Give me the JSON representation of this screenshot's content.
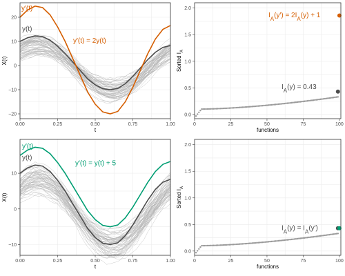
{
  "colors": {
    "orange": "#D55E00",
    "green": "#009E73",
    "bold": "#4d4d4d",
    "thin": "#b3b3b3",
    "points": "#9a9a9a"
  },
  "chart_data": [
    {
      "type": "line",
      "panel": "top-left",
      "xlabel": "t",
      "ylabel": "X(t)",
      "xlim": [
        0,
        1
      ],
      "ylim": [
        -22,
        26
      ],
      "xticks": [
        0,
        0.25,
        0.5,
        0.75,
        1
      ],
      "xticklabels": [
        "0.00",
        "0.25",
        "0.50",
        "0.75",
        "1.00"
      ],
      "yticks": [
        -20,
        -10,
        0,
        10,
        20
      ],
      "yticklabels": [
        "−20",
        "−10",
        "0",
        "10",
        "20"
      ],
      "background_curves": {
        "count": 60,
        "amplitude": 11,
        "offset": -1,
        "phase": 0.0,
        "color": "thin"
      },
      "series": [
        {
          "name": "y(t)",
          "color": "bold",
          "x": [
            0,
            0.05,
            0.1,
            0.15,
            0.2,
            0.25,
            0.3,
            0.35,
            0.4,
            0.45,
            0.5,
            0.55,
            0.6,
            0.65,
            0.7,
            0.75,
            0.8,
            0.85,
            0.9,
            0.95,
            1
          ],
          "values": [
            10,
            11.5,
            12.3,
            12,
            10.5,
            8,
            5,
            1.5,
            -2,
            -5.5,
            -8,
            -9.6,
            -10,
            -9.5,
            -7.5,
            -4.5,
            -1,
            2.5,
            5.5,
            7.5,
            8.3
          ]
        },
        {
          "name": "y′(t)",
          "color": "orange",
          "x": [
            0,
            0.05,
            0.1,
            0.15,
            0.2,
            0.25,
            0.3,
            0.35,
            0.4,
            0.45,
            0.5,
            0.55,
            0.6,
            0.65,
            0.7,
            0.75,
            0.8,
            0.85,
            0.9,
            0.95,
            1
          ],
          "values": [
            20,
            23,
            24.6,
            24,
            21,
            16,
            10,
            3,
            -4,
            -11,
            -16,
            -19.2,
            -20,
            -19,
            -15,
            -9,
            -2,
            5,
            11,
            15,
            16.6
          ]
        }
      ],
      "labels": [
        {
          "text": "y′(t)",
          "color": "orange"
        },
        {
          "text": "y(t)",
          "color": "bold"
        },
        {
          "text": "y′(t) = 2y(t)",
          "color": "orange"
        }
      ]
    },
    {
      "type": "scatter",
      "panel": "top-right",
      "xlabel": "functions",
      "ylabel": "Sorted I",
      "ylabel_sub": "A",
      "xlim": [
        0,
        101
      ],
      "ylim": [
        -0.08,
        2.1
      ],
      "xticks": [
        0,
        25,
        50,
        75,
        100
      ],
      "xticklabels": [
        "0",
        "25",
        "50",
        "75",
        "100"
      ],
      "yticks": [
        0,
        0.5,
        1,
        1.5,
        2
      ],
      "yticklabels": [
        "0.0",
        "0.5",
        "1.0",
        "1.5",
        "2.0"
      ],
      "points": {
        "count": 99,
        "start": -0.03,
        "knee": 0.1,
        "end": 0.33,
        "color": "points"
      },
      "highlight": {
        "x": 99,
        "y": 0.43,
        "color": "bold"
      },
      "extra_point": {
        "x": 100,
        "y": 1.86,
        "color": "orange"
      },
      "labels": [
        {
          "text": "I",
          "sub": "A",
          "rest": "(y′) = 2I",
          "sub2": "A",
          "rest2": "(y) + 1",
          "color": "orange"
        },
        {
          "text": "I",
          "sub": "A",
          "rest": "(y) = 0.43",
          "color": "bold"
        }
      ]
    },
    {
      "type": "line",
      "panel": "bottom-left",
      "xlabel": "t",
      "ylabel": "X(t)",
      "xlim": [
        0,
        1
      ],
      "ylim": [
        -13,
        19.5
      ],
      "xticks": [
        0,
        0.25,
        0.5,
        0.75,
        1
      ],
      "xticklabels": [
        "0.00",
        "0.25",
        "0.50",
        "0.75",
        "1.00"
      ],
      "yticks": [
        -10,
        0,
        10
      ],
      "yticklabels": [
        "−10",
        "0",
        "10"
      ],
      "background_curves": {
        "count": 60,
        "amplitude": 11,
        "offset": -1,
        "phase": 0.0,
        "color": "thin"
      },
      "series": [
        {
          "name": "y(t)",
          "color": "bold",
          "x": [
            0,
            0.05,
            0.1,
            0.15,
            0.2,
            0.25,
            0.3,
            0.35,
            0.4,
            0.45,
            0.5,
            0.55,
            0.6,
            0.65,
            0.7,
            0.75,
            0.8,
            0.85,
            0.9,
            0.95,
            1
          ],
          "values": [
            10,
            11.5,
            12.3,
            12,
            10.5,
            8,
            5,
            1.5,
            -2,
            -5.5,
            -8,
            -9.6,
            -10,
            -9.5,
            -7.5,
            -4.5,
            -1,
            2.5,
            5.5,
            7.5,
            8.3
          ]
        },
        {
          "name": "y′(t)",
          "color": "green",
          "x": [
            0,
            0.05,
            0.1,
            0.15,
            0.2,
            0.25,
            0.3,
            0.35,
            0.4,
            0.45,
            0.5,
            0.55,
            0.6,
            0.65,
            0.7,
            0.75,
            0.8,
            0.85,
            0.9,
            0.95,
            1
          ],
          "values": [
            15,
            16.5,
            17.3,
            17,
            15.5,
            13,
            10,
            6.5,
            3,
            -0.5,
            -3,
            -4.6,
            -5,
            -4.5,
            -2.5,
            0.5,
            4,
            7.5,
            10.5,
            12.5,
            13.3
          ]
        }
      ],
      "labels": [
        {
          "text": "y′(t)",
          "color": "green"
        },
        {
          "text": "y(t)",
          "color": "bold"
        },
        {
          "text": "y′(t) = y(t) + 5",
          "color": "green"
        }
      ]
    },
    {
      "type": "scatter",
      "panel": "bottom-right",
      "xlabel": "functions",
      "ylabel": "Sorted I",
      "ylabel_sub": "A",
      "xlim": [
        0,
        101
      ],
      "ylim": [
        -0.08,
        2.1
      ],
      "xticks": [
        0,
        25,
        50,
        75,
        100
      ],
      "xticklabels": [
        "0",
        "25",
        "50",
        "75",
        "100"
      ],
      "yticks": [
        0,
        0.5,
        1,
        1.5,
        2
      ],
      "yticklabels": [
        "0.0",
        "0.5",
        "1.0",
        "1.5",
        "2.0"
      ],
      "points": {
        "count": 99,
        "start": -0.03,
        "knee": 0.1,
        "end": 0.33,
        "color": "points"
      },
      "highlight": {
        "x": 99,
        "y": 0.43,
        "color": "bold"
      },
      "extra_point": {
        "x": 100,
        "y": 0.43,
        "color": "green"
      },
      "labels": [
        {
          "text": "I",
          "sub": "A",
          "rest": "(y) = I",
          "sub2": "A",
          "rest2": "(y′)",
          "color": "bold"
        }
      ]
    }
  ]
}
